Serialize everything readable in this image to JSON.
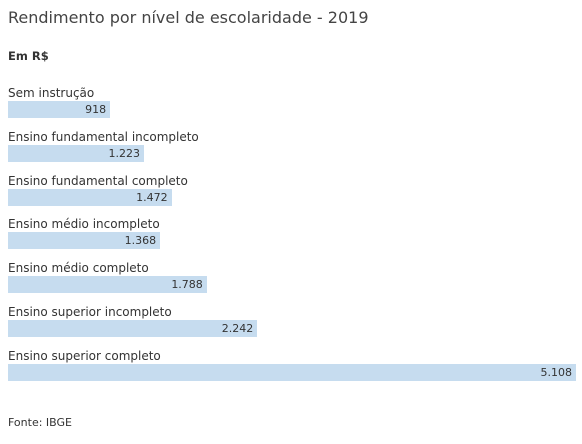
{
  "chart_data": {
    "type": "bar",
    "orientation": "horizontal",
    "title": "Rendimento por nível de escolaridade - 2019",
    "subtitle": "Em R$",
    "categories": [
      "Sem instrução",
      "Ensino fundamental incompleto",
      "Ensino fundamental completo",
      "Ensino médio incompleto",
      "Ensino médio completo",
      "Ensino superior incompleto",
      "Ensino superior completo"
    ],
    "values": [
      918,
      1223,
      1472,
      1368,
      1788,
      2242,
      5108
    ],
    "value_labels": [
      "918",
      "1.223",
      "1.472",
      "1.368",
      "1.788",
      "2.242",
      "5.108"
    ],
    "xlim": [
      0,
      5108
    ],
    "source": "Fonte: IBGE",
    "bar_color": "#c6dcef"
  }
}
